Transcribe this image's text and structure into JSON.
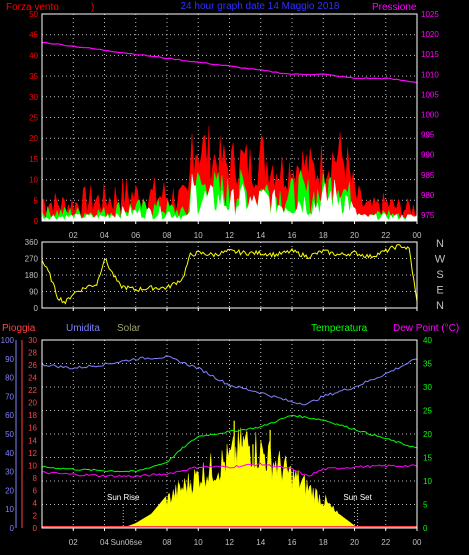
{
  "page": {
    "title": "24 hour graph date  14 Maggio 2018",
    "x_ticks": [
      "02",
      "04",
      "06",
      "08",
      "10",
      "12",
      "14",
      "16",
      "18",
      "20",
      "22",
      "00"
    ]
  },
  "chart_data": [
    {
      "type": "area",
      "panel": "wind_pressure",
      "y_left_label": "Forza vento",
      "y_left_suffix": ")",
      "y_right_label": "Pressione",
      "y_left_ticks": [
        0,
        5,
        10,
        15,
        20,
        25,
        30,
        35,
        40,
        45,
        50
      ],
      "y_right_ticks": [
        975,
        980,
        985,
        990,
        995,
        1000,
        1005,
        1010,
        1015,
        1020,
        1025
      ],
      "ylim_left": [
        0,
        50
      ],
      "ylim_right": [
        973.5,
        1025
      ],
      "x_hours": [
        0,
        1,
        2,
        3,
        4,
        5,
        6,
        7,
        8,
        9,
        9.4,
        9.6,
        10,
        10.5,
        11,
        11.5,
        12,
        12.5,
        13,
        13.5,
        14,
        14.5,
        15,
        15.5,
        16,
        16.5,
        17,
        17.5,
        18,
        18.5,
        19,
        19.5,
        20,
        20.5,
        21,
        22,
        23,
        24
      ],
      "series": [
        {
          "role": "gust",
          "color": "#ff0000",
          "values": [
            5,
            4,
            4,
            5,
            5,
            6,
            6,
            6,
            6,
            5,
            5,
            20,
            18,
            17,
            15,
            14,
            13,
            15,
            14,
            13,
            16,
            14,
            13,
            12,
            13,
            14,
            13,
            12,
            14,
            15,
            16,
            14,
            6,
            4,
            3,
            4,
            3,
            3
          ]
        },
        {
          "role": "average",
          "color": "#00ff00",
          "values": [
            2,
            2,
            2,
            2,
            2,
            3,
            3,
            3,
            3,
            2,
            2,
            10,
            9,
            8,
            7,
            7,
            6,
            7,
            7,
            6,
            7,
            7,
            6,
            6,
            6,
            7,
            6,
            6,
            7,
            8,
            9,
            7,
            3,
            2,
            1,
            2,
            1,
            1
          ]
        },
        {
          "role": "speed",
          "color": "#ffffff",
          "values": [
            1,
            1,
            1,
            1,
            1,
            2,
            2,
            2,
            2,
            1,
            1,
            7,
            6,
            5,
            5,
            5,
            4,
            5,
            5,
            4,
            5,
            5,
            4,
            4,
            4,
            5,
            4,
            4,
            5,
            6,
            6,
            5,
            2,
            1,
            1,
            1,
            1,
            1
          ]
        },
        {
          "role": "pressure",
          "color": "#ff00ff",
          "x_hours": [
            0,
            2,
            4,
            6,
            8,
            10,
            12,
            14,
            16,
            18,
            20,
            22,
            24
          ],
          "values": [
            1018,
            1017,
            1016,
            1015,
            1014,
            1013,
            1012,
            1011,
            1010,
            1010,
            1009,
            1009,
            1008
          ]
        }
      ]
    },
    {
      "type": "line",
      "panel": "wind_direction",
      "y_ticks": [
        360,
        270,
        180,
        90,
        0
      ],
      "right_labels": [
        "N",
        "W",
        "S",
        "E",
        "N"
      ],
      "ylim": [
        0,
        360
      ],
      "series": [
        {
          "role": "direction",
          "color": "#ffff00",
          "x_hours": [
            0,
            0.5,
            1,
            1.5,
            2,
            2.5,
            3,
            3.5,
            4,
            4.5,
            5,
            6,
            7,
            8,
            9,
            9.5,
            10,
            11,
            12,
            13,
            14,
            15,
            16,
            17,
            18,
            19,
            20,
            21,
            22,
            22.5,
            23,
            23.5,
            24
          ],
          "values": [
            260,
            180,
            60,
            30,
            80,
            100,
            120,
            130,
            270,
            190,
            120,
            100,
            110,
            110,
            160,
            290,
            300,
            290,
            310,
            300,
            300,
            290,
            310,
            280,
            310,
            290,
            300,
            280,
            310,
            330,
            340,
            320,
            30
          ]
        }
      ]
    },
    {
      "type": "line",
      "panel": "temp_humidity_rain_solar",
      "labels": {
        "rain": "Pioggia",
        "humidity": "Umidita",
        "solar": "Solar",
        "temperature": "Temperatura",
        "dewpoint": "Dew Point (°C)",
        "sunrise": "Sun Rise",
        "sunset": "Sun Set"
      },
      "y_humidity_ticks": [
        0,
        10,
        20,
        30,
        40,
        50,
        60,
        70,
        80,
        90,
        100
      ],
      "y_rain_ticks": [
        0,
        2,
        4,
        6,
        8,
        10,
        12,
        14,
        16,
        18,
        20,
        22,
        24,
        26,
        28,
        30
      ],
      "y_temp_ticks": [
        0,
        5,
        10,
        15,
        20,
        25,
        30,
        35,
        40
      ],
      "ylim_temp": [
        0,
        40
      ],
      "ylim_humidity": [
        0,
        100
      ],
      "sunrise_hour": 5.2,
      "sunset_hour": 20.2,
      "sunrise_tick": "Sun06se",
      "series": [
        {
          "role": "humidity",
          "color": "#8080ff",
          "x_hours": [
            0,
            2,
            4,
            6,
            8,
            9,
            10,
            12,
            14,
            16,
            17,
            18,
            20,
            22,
            24
          ],
          "values": [
            87,
            85,
            87,
            90,
            91,
            88,
            85,
            76,
            72,
            67,
            66,
            70,
            75,
            82,
            90
          ]
        },
        {
          "role": "temperature",
          "color": "#00ff00",
          "x_hours": [
            0,
            2,
            4,
            6,
            8,
            9,
            10,
            12,
            14,
            16,
            18,
            20,
            22,
            24
          ],
          "values": [
            13,
            12.5,
            12.2,
            12,
            14,
            17,
            19.5,
            20.5,
            21.5,
            24,
            23,
            21,
            19,
            17
          ]
        },
        {
          "role": "dewpoint",
          "color": "#ff00ff",
          "x_hours": [
            0,
            2,
            4,
            6,
            8,
            10,
            12,
            14,
            16,
            17,
            18,
            20,
            22,
            24
          ],
          "values": [
            11.8,
            11.4,
            11.1,
            11,
            11.5,
            13,
            13,
            13.6,
            12.5,
            11,
            12.5,
            13,
            13.2,
            13.2
          ]
        },
        {
          "role": "solar",
          "color": "#ffff00",
          "x_hours": [
            5.2,
            6,
            7,
            8,
            9,
            10,
            11,
            12,
            12.5,
            13,
            13.5,
            14,
            15,
            16,
            17,
            18,
            19,
            20,
            20.2
          ],
          "values": [
            0,
            1,
            3,
            7,
            10,
            13,
            15,
            17,
            19,
            21,
            20,
            19,
            16,
            13,
            10,
            7,
            3,
            0.5,
            0
          ]
        },
        {
          "role": "rain",
          "color": "#ff4040",
          "x_hours": [
            0,
            24
          ],
          "values": [
            0,
            0
          ]
        }
      ]
    }
  ]
}
